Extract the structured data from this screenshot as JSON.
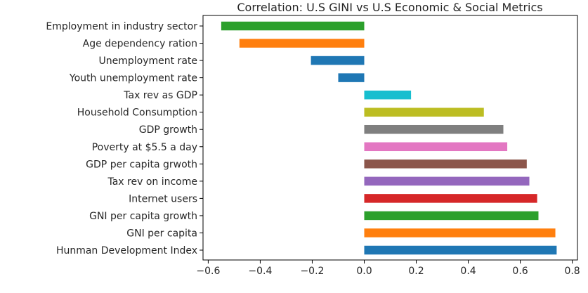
{
  "chart_data": {
    "type": "bar",
    "orientation": "horizontal",
    "title": "Correlation: U.S GINI vs U.S Economic & Social Metrics",
    "xlabel": "",
    "ylabel": "",
    "xlim": [
      -0.62,
      0.82
    ],
    "x_ticks": [
      "−0.6",
      "−0.4",
      "−0.2",
      "0.0",
      "0.2",
      "0.4",
      "0.6",
      "0.8"
    ],
    "x_tick_values": [
      -0.6,
      -0.4,
      -0.2,
      0.0,
      0.2,
      0.4,
      0.6,
      0.8
    ],
    "grid": false,
    "categories": [
      "Employment in industry sector",
      "Age dependency ration",
      "Unemployment rate",
      "Youth unemployment rate",
      "Tax rev as GDP",
      "Household Consumption",
      "GDP growth",
      "Poverty at $5.5 a day",
      "GDP per capita grwoth",
      "Tax rev on income",
      "Internet users",
      "GNI per capita growth",
      "GNI per capita",
      "Hunman Development Index"
    ],
    "values": [
      -0.55,
      -0.48,
      -0.205,
      -0.1,
      0.18,
      0.46,
      0.535,
      0.55,
      0.625,
      0.635,
      0.665,
      0.67,
      0.735,
      0.74
    ],
    "colors": [
      "#2ca02c",
      "#ff7f0e",
      "#1f77b4",
      "#1f77b4",
      "#17becf",
      "#bcbd22",
      "#7f7f7f",
      "#e377c2",
      "#8c564b",
      "#9467bd",
      "#d62728",
      "#2ca02c",
      "#ff7f0e",
      "#1f77b4"
    ]
  }
}
